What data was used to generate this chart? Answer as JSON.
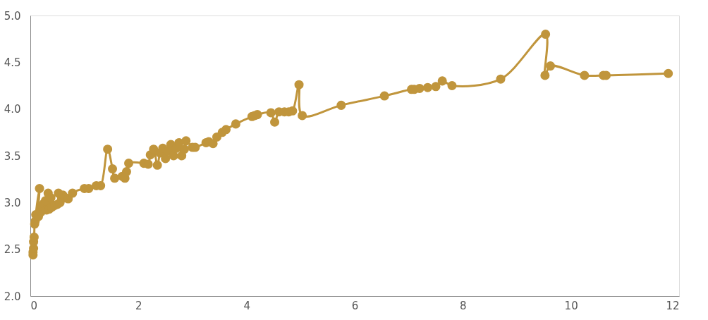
{
  "chart_data": {
    "type": "line",
    "x": [
      0.05,
      0.05,
      0.06,
      0.06,
      0.07,
      0.08,
      0.09,
      0.1,
      0.17,
      0.15,
      0.2,
      0.22,
      0.25,
      0.28,
      0.3,
      0.33,
      0.35,
      0.38,
      0.4,
      0.45,
      0.5,
      0.52,
      0.55,
      0.6,
      0.65,
      0.7,
      0.78,
      1.0,
      1.08,
      1.22,
      1.3,
      1.43,
      1.52,
      1.56,
      1.7,
      1.75,
      1.78,
      1.82,
      2.1,
      2.18,
      2.22,
      2.28,
      2.35,
      2.4,
      2.45,
      2.5,
      2.55,
      2.6,
      2.65,
      2.7,
      2.75,
      2.8,
      2.85,
      2.88,
      3.0,
      3.05,
      3.25,
      3.3,
      3.38,
      3.45,
      3.55,
      3.62,
      3.8,
      4.1,
      4.15,
      4.2,
      4.45,
      4.52,
      4.6,
      4.7,
      4.78,
      4.85,
      4.97,
      5.03,
      5.75,
      6.55,
      7.05,
      7.1,
      7.2,
      7.35,
      7.5,
      7.62,
      7.8,
      8.7,
      9.53,
      9.52,
      9.62,
      10.25,
      10.6,
      10.65,
      11.8
    ],
    "series": [
      {
        "color": "#c0953c",
        "values": [
          2.44,
          2.47,
          2.51,
          2.58,
          2.63,
          2.77,
          2.8,
          2.87,
          3.15,
          2.85,
          2.9,
          2.96,
          2.99,
          3.02,
          2.92,
          3.1,
          2.93,
          3.05,
          2.95,
          2.97,
          2.98,
          3.1,
          3.0,
          3.08,
          3.05,
          3.04,
          3.1,
          3.15,
          3.15,
          3.18,
          3.18,
          3.57,
          3.36,
          3.26,
          3.28,
          3.26,
          3.33,
          3.42,
          3.42,
          3.41,
          3.51,
          3.57,
          3.4,
          3.53,
          3.58,
          3.47,
          3.55,
          3.62,
          3.5,
          3.58,
          3.64,
          3.5,
          3.57,
          3.66,
          3.59,
          3.59,
          3.64,
          3.65,
          3.63,
          3.7,
          3.75,
          3.78,
          3.84,
          3.92,
          3.93,
          3.94,
          3.96,
          3.86,
          3.97,
          3.97,
          3.97,
          3.98,
          4.26,
          3.93,
          4.04,
          4.14,
          4.21,
          4.21,
          4.22,
          4.23,
          4.24,
          4.3,
          4.25,
          4.32,
          4.8,
          4.36,
          4.46,
          4.36,
          4.36,
          4.36,
          4.38
        ]
      }
    ],
    "xlim": [
      0,
      12
    ],
    "xticks": [
      0,
      2,
      4,
      6,
      8,
      10,
      12
    ],
    "ylim": [
      2,
      5
    ],
    "yticks": [
      {
        "value": 2,
        "label": "2.0"
      },
      {
        "value": 2.5,
        "label": "2.5"
      },
      {
        "value": 3,
        "label": "3.0"
      },
      {
        "value": 3.5,
        "label": "3.5"
      },
      {
        "value": 4,
        "label": "4.0"
      },
      {
        "value": 4.5,
        "label": "4.5"
      },
      {
        "value": 5,
        "label": "5.0"
      }
    ],
    "grid": false,
    "marker": "circle",
    "line_style": "solid"
  }
}
